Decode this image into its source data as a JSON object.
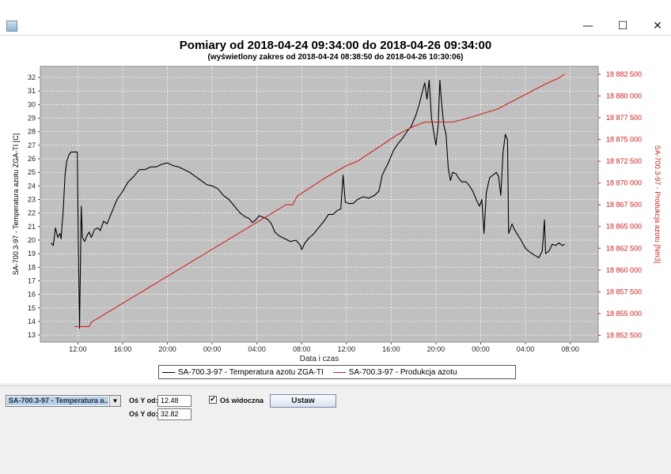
{
  "window": {
    "minimize_glyph": "—",
    "maximize_glyph": "☐",
    "close_glyph": "✕",
    "app_icon": "java-app-icon"
  },
  "chart": {
    "title": "Pomiary od 2018-04-24 09:34:00 do 2018-04-26 09:34:00",
    "subtitle": "(wyświetlony zakres od 2018-04-24 08:38:50 do 2018-04-26 10:30:06)"
  },
  "chart_data": {
    "type": "line",
    "xlabel": "Data i czas",
    "ylabel_left": "SA-700.3-97 - Temperatura azotu ZGA-TI [C]",
    "ylabel_right": "SA-700.3-97 - Produkcja azotu [Nm3]",
    "x_unit": "hours since 2018-04-24 00:00",
    "xlim": [
      8.647,
      58.502
    ],
    "x_ticks": [
      12,
      16,
      20,
      24,
      28,
      32,
      36,
      40,
      44,
      48,
      52,
      56
    ],
    "x_tick_labels": [
      "12:00",
      "16:00",
      "20:00",
      "00:00",
      "04:00",
      "08:00",
      "12:00",
      "16:00",
      "20:00",
      "00:00",
      "04:00",
      "08:00"
    ],
    "ylim_left": [
      12.48,
      32.82
    ],
    "y_ticks_left": [
      13,
      14,
      15,
      16,
      17,
      18,
      19,
      20,
      21,
      22,
      23,
      24,
      25,
      26,
      27,
      28,
      29,
      30,
      31,
      32
    ],
    "ylim_right": [
      18851725,
      18883400
    ],
    "y_ticks_right": [
      18852500,
      18855000,
      18857500,
      18860000,
      18862500,
      18865000,
      18867500,
      18870000,
      18872500,
      18875000,
      18877500,
      18880000,
      18882500
    ],
    "y_tick_labels_right": [
      "18 852 500",
      "18 855 000",
      "18 857 500",
      "18 860 000",
      "18 862 500",
      "18 865 000",
      "18 867 500",
      "18 870 000",
      "18 872 500",
      "18 875 000",
      "18 877 500",
      "18 880 000",
      "18 882 500"
    ],
    "grid": true,
    "plot_background": "#c0c0c0",
    "legend_position": "bottom",
    "series": [
      {
        "name": "SA-700.3-97 - Temperatura azotu ZGA-TI",
        "axis": "left",
        "color": "#000000",
        "points": [
          [
            9.6,
            19.8
          ],
          [
            9.8,
            19.6
          ],
          [
            10.0,
            20.9
          ],
          [
            10.2,
            20.2
          ],
          [
            10.4,
            20.5
          ],
          [
            10.5,
            20.1
          ],
          [
            10.7,
            22.3
          ],
          [
            10.85,
            24.8
          ],
          [
            11.0,
            25.8
          ],
          [
            11.2,
            26.3
          ],
          [
            11.4,
            26.5
          ],
          [
            11.7,
            26.5
          ],
          [
            11.95,
            26.5
          ],
          [
            12.05,
            19.0
          ],
          [
            12.15,
            13.5
          ],
          [
            12.3,
            22.5
          ],
          [
            12.4,
            20.2
          ],
          [
            12.6,
            19.9
          ],
          [
            12.8,
            20.3
          ],
          [
            13.0,
            20.6
          ],
          [
            13.2,
            20.2
          ],
          [
            13.5,
            20.8
          ],
          [
            13.8,
            20.9
          ],
          [
            14.0,
            20.7
          ],
          [
            14.3,
            21.4
          ],
          [
            14.6,
            21.2
          ],
          [
            15.0,
            22.0
          ],
          [
            15.5,
            23.0
          ],
          [
            16.0,
            23.6
          ],
          [
            16.5,
            24.3
          ],
          [
            17.0,
            24.7
          ],
          [
            17.5,
            25.2
          ],
          [
            18.0,
            25.2
          ],
          [
            18.5,
            25.4
          ],
          [
            19.0,
            25.4
          ],
          [
            19.5,
            25.6
          ],
          [
            20.0,
            25.7
          ],
          [
            20.5,
            25.5
          ],
          [
            21.0,
            25.4
          ],
          [
            21.5,
            25.2
          ],
          [
            22.0,
            25.0
          ],
          [
            22.5,
            24.7
          ],
          [
            23.0,
            24.4
          ],
          [
            23.5,
            24.1
          ],
          [
            24.0,
            24.0
          ],
          [
            24.5,
            23.8
          ],
          [
            25.0,
            23.3
          ],
          [
            25.5,
            23.0
          ],
          [
            26.0,
            22.5
          ],
          [
            26.5,
            22.0
          ],
          [
            27.0,
            21.7
          ],
          [
            27.3,
            21.6
          ],
          [
            27.6,
            21.3
          ],
          [
            27.9,
            21.5
          ],
          [
            28.2,
            21.8
          ],
          [
            28.5,
            21.7
          ],
          [
            28.8,
            21.6
          ],
          [
            29.0,
            21.5
          ],
          [
            29.3,
            21.2
          ],
          [
            29.6,
            20.6
          ],
          [
            30.0,
            20.3
          ],
          [
            30.5,
            20.1
          ],
          [
            31.0,
            19.9
          ],
          [
            31.5,
            20.0
          ],
          [
            31.9,
            19.6
          ],
          [
            32.0,
            19.3
          ],
          [
            32.3,
            19.8
          ],
          [
            32.7,
            20.2
          ],
          [
            33.0,
            20.4
          ],
          [
            33.3,
            20.7
          ],
          [
            33.6,
            21.0
          ],
          [
            34.0,
            21.4
          ],
          [
            34.4,
            21.9
          ],
          [
            34.8,
            21.9
          ],
          [
            35.2,
            22.2
          ],
          [
            35.5,
            22.3
          ],
          [
            35.7,
            24.8
          ],
          [
            35.9,
            22.8
          ],
          [
            36.2,
            22.7
          ],
          [
            36.6,
            22.7
          ],
          [
            37.0,
            23.0
          ],
          [
            37.5,
            23.2
          ],
          [
            38.0,
            23.1
          ],
          [
            38.5,
            23.3
          ],
          [
            38.9,
            23.6
          ],
          [
            39.2,
            24.8
          ],
          [
            39.5,
            25.3
          ],
          [
            39.8,
            25.8
          ],
          [
            40.2,
            26.6
          ],
          [
            40.6,
            27.1
          ],
          [
            41.0,
            27.5
          ],
          [
            41.4,
            28.0
          ],
          [
            41.8,
            28.4
          ],
          [
            42.2,
            29.2
          ],
          [
            42.5,
            30.0
          ],
          [
            42.8,
            31.0
          ],
          [
            43.0,
            31.6
          ],
          [
            43.2,
            30.4
          ],
          [
            43.4,
            31.8
          ],
          [
            43.6,
            29.0
          ],
          [
            43.8,
            28.0
          ],
          [
            44.0,
            27.0
          ],
          [
            44.2,
            28.5
          ],
          [
            44.35,
            31.8
          ],
          [
            44.5,
            30.2
          ],
          [
            44.7,
            28.5
          ],
          [
            44.9,
            27.8
          ],
          [
            45.1,
            25.3
          ],
          [
            45.3,
            24.4
          ],
          [
            45.5,
            25.0
          ],
          [
            45.8,
            24.9
          ],
          [
            46.0,
            24.6
          ],
          [
            46.3,
            24.3
          ],
          [
            46.7,
            24.3
          ],
          [
            47.0,
            24.0
          ],
          [
            47.3,
            23.6
          ],
          [
            47.6,
            23.0
          ],
          [
            47.9,
            22.5
          ],
          [
            48.1,
            23.0
          ],
          [
            48.3,
            20.5
          ],
          [
            48.5,
            23.5
          ],
          [
            48.8,
            24.6
          ],
          [
            49.1,
            24.8
          ],
          [
            49.4,
            25.0
          ],
          [
            49.6,
            24.7
          ],
          [
            49.8,
            23.3
          ],
          [
            50.0,
            26.5
          ],
          [
            50.2,
            27.8
          ],
          [
            50.4,
            27.4
          ],
          [
            50.5,
            20.5
          ],
          [
            50.8,
            21.2
          ],
          [
            51.0,
            20.8
          ],
          [
            51.3,
            20.4
          ],
          [
            51.6,
            20.0
          ],
          [
            52.0,
            19.4
          ],
          [
            52.4,
            19.1
          ],
          [
            52.8,
            18.9
          ],
          [
            53.2,
            18.7
          ],
          [
            53.5,
            19.2
          ],
          [
            53.7,
            21.5
          ],
          [
            53.8,
            19.0
          ],
          [
            54.1,
            19.2
          ],
          [
            54.4,
            19.7
          ],
          [
            54.7,
            19.6
          ],
          [
            55.0,
            19.8
          ],
          [
            55.3,
            19.6
          ],
          [
            55.5,
            19.7
          ]
        ]
      },
      {
        "name": "SA-700.3-97 - Produkcja azotu",
        "axis": "right",
        "color": "#d42020",
        "points": [
          [
            11.7,
            18853500
          ],
          [
            13.0,
            18853500
          ],
          [
            13.2,
            18854000
          ],
          [
            30.6,
            18867500
          ],
          [
            31.2,
            18867500
          ],
          [
            31.6,
            18868500
          ],
          [
            34.0,
            18870500
          ],
          [
            36.0,
            18872000
          ],
          [
            37.0,
            18872500
          ],
          [
            40.5,
            18875500
          ],
          [
            42.0,
            18876500
          ],
          [
            43.0,
            18877000
          ],
          [
            45.5,
            18877000
          ],
          [
            47.0,
            18877500
          ],
          [
            49.5,
            18878500
          ],
          [
            54.0,
            18881500
          ],
          [
            54.9,
            18882000
          ],
          [
            55.5,
            18882500
          ]
        ]
      }
    ]
  },
  "controls": {
    "series_selector_value": "SA-700.3-97 - Temperatura a...",
    "y_from_label": "Oś Y od:",
    "y_from_value": "12.48",
    "y_to_label": "Oś Y do:",
    "y_to_value": "32.82",
    "axis_visible_label": "Oś widoczna",
    "axis_visible_checked": "✔",
    "apply_button": "Ustaw"
  }
}
